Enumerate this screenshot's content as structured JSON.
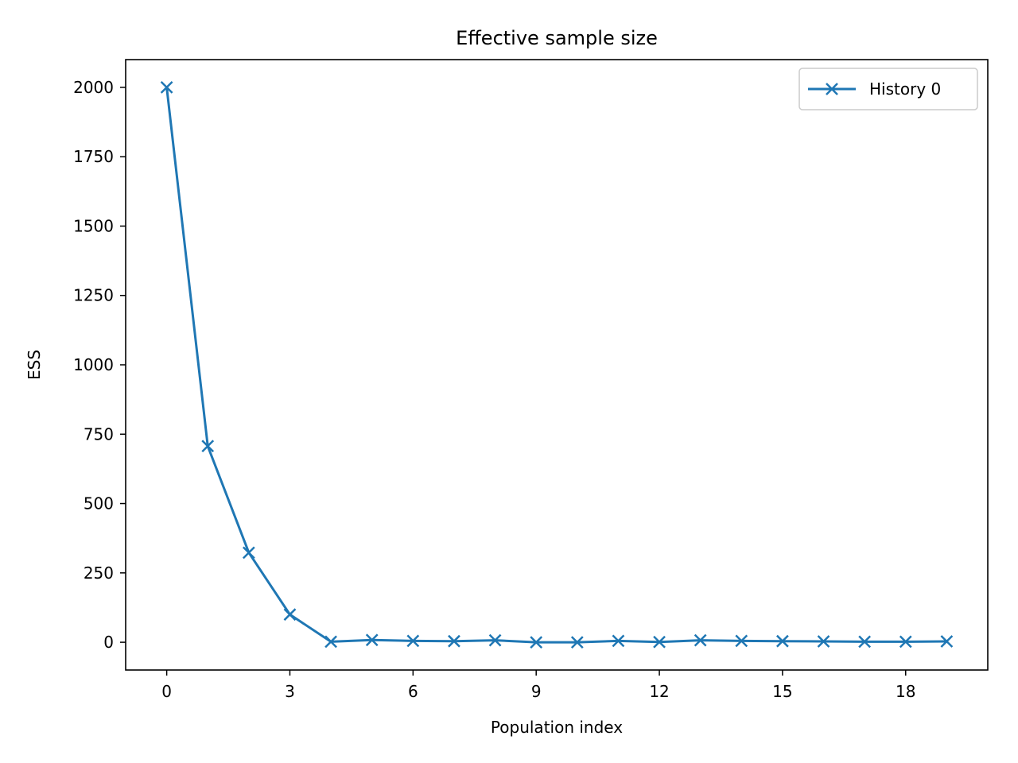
{
  "chart_data": {
    "type": "line",
    "title": "Effective sample size",
    "xlabel": "Population index",
    "ylabel": "ESS",
    "xlim": [
      -1,
      20
    ],
    "ylim": [
      -100,
      2100
    ],
    "xticks": [
      0,
      3,
      6,
      9,
      12,
      15,
      18
    ],
    "yticks": [
      0,
      250,
      500,
      750,
      1000,
      1250,
      1500,
      1750,
      2000
    ],
    "grid": false,
    "legend_position": "upper-right",
    "series": [
      {
        "name": "History 0",
        "color": "#1f77b4",
        "marker": "x",
        "x": [
          0,
          1,
          2,
          3,
          4,
          5,
          6,
          7,
          8,
          9,
          10,
          11,
          12,
          13,
          14,
          15,
          16,
          17,
          18,
          19
        ],
        "y": [
          2000,
          707,
          323,
          100,
          2,
          8,
          5,
          4,
          7,
          0,
          0,
          5,
          1,
          7,
          5,
          4,
          3,
          2,
          2,
          3
        ]
      }
    ]
  }
}
